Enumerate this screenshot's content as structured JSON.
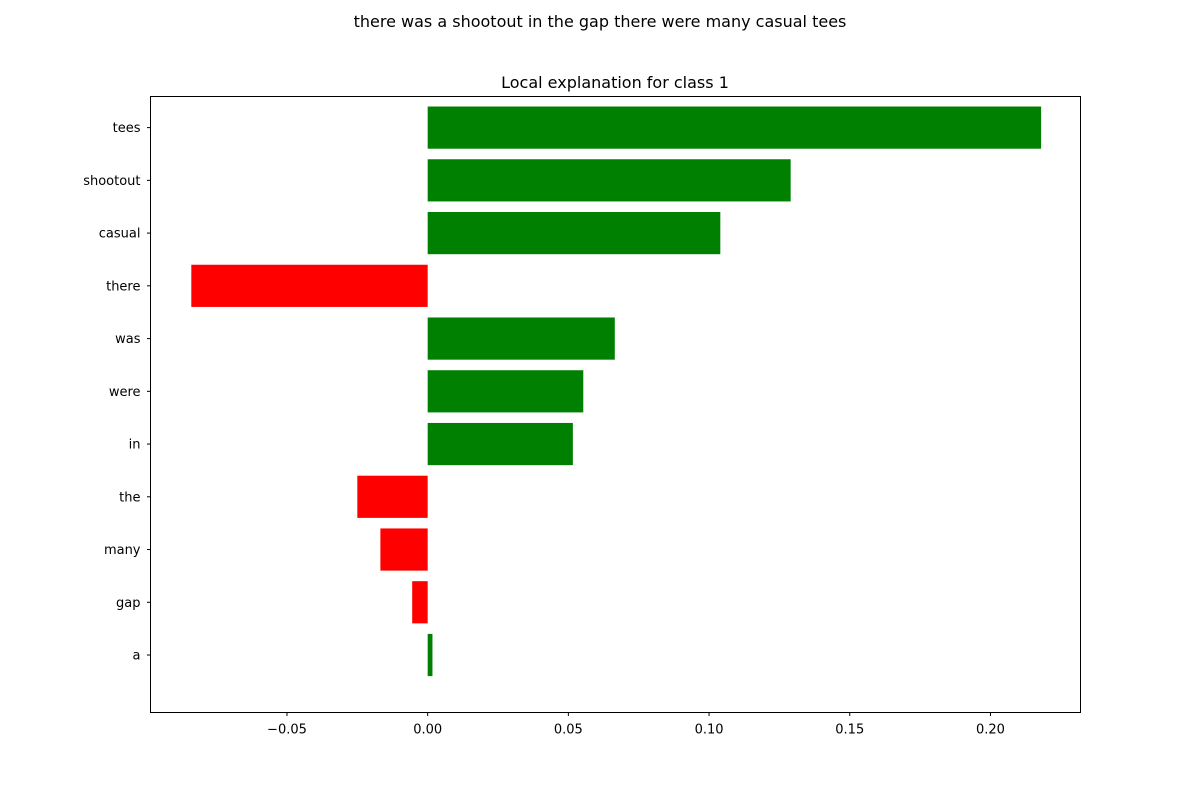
{
  "figure_title": "there was a shootout in the gap there were many casual tees",
  "chart_data": {
    "type": "bar",
    "orientation": "horizontal",
    "title": "Local explanation for class 1",
    "xlabel": "",
    "ylabel": "",
    "categories": [
      "tees",
      "shootout",
      "casual",
      "there",
      "was",
      "were",
      "in",
      "the",
      "many",
      "gap",
      "a"
    ],
    "values": [
      0.218,
      0.129,
      0.104,
      -0.084,
      0.0665,
      0.0553,
      0.0516,
      -0.025,
      -0.0168,
      -0.0055,
      0.0017
    ],
    "xlim": [
      -0.0985,
      0.232
    ],
    "xticks": [
      -0.05,
      0.0,
      0.05,
      0.1,
      0.15,
      0.2
    ],
    "xtick_labels": [
      "−0.05",
      "0.00",
      "0.05",
      "0.10",
      "0.15",
      "0.20"
    ],
    "positive_color": "#008000",
    "negative_color": "#ff0000",
    "grid": false,
    "legend": "none"
  }
}
